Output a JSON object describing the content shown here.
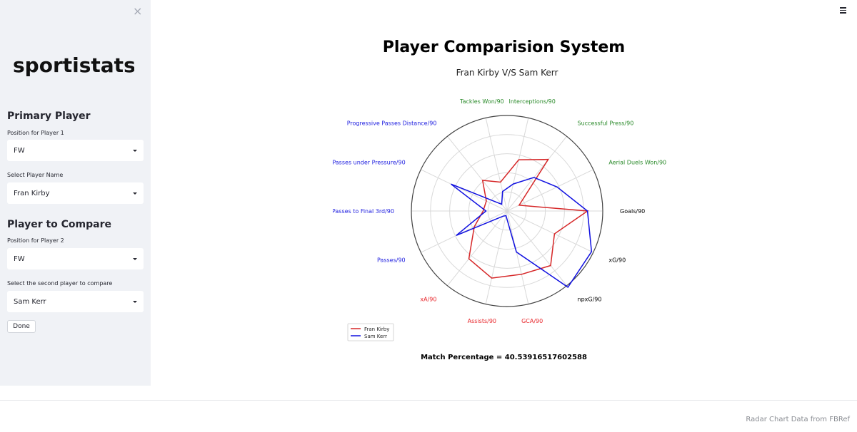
{
  "sidebar": {
    "close_glyph": "×",
    "logo_text": "sportistats",
    "primary_title": "Primary Player",
    "position1_label": "Position for Player 1",
    "position1_value": "FW",
    "player1_label": "Select Player Name",
    "player1_value": "Fran Kirby",
    "compare_title": "Player to Compare",
    "position2_label": "Position for Player 2",
    "position2_value": "FW",
    "player2_label": "Select the second player to compare",
    "player2_value": "Sam Kerr",
    "done_label": "Done"
  },
  "main": {
    "title": "Player Comparision System",
    "match_text": "Match Percentage = 40.53916517602588",
    "footer_text": "Radar Chart Data from FBRef"
  },
  "chart_data": {
    "type": "radar",
    "title": "Fran Kirby V/S Sam Kerr",
    "categories": [
      "Goals/90",
      "xG/90",
      "npxG/90",
      "GCA/90",
      "Assists/90",
      "xA/90",
      "Passes/90",
      "Passes to Final 3rd/90",
      "Passes under Pressure/90",
      "Progressive Passes Distance/90",
      "Tackles Won/90",
      "Interceptions/90",
      "Successful Press/90",
      "Aerial Duels Won/90"
    ],
    "category_colors": [
      "#000000",
      "#000000",
      "#000000",
      "#e8262b",
      "#e8262b",
      "#e8262b",
      "#2020e0",
      "#2020e0",
      "#2020e0",
      "#2020e0",
      "#2a8a2a",
      "#2a8a2a",
      "#2a8a2a",
      "#2a8a2a"
    ],
    "r_max": 1.0,
    "rings": 5,
    "grid": true,
    "legend_position": "bottom-left",
    "series": [
      {
        "name": "Fran Kirby",
        "color": "#d62728",
        "values": [
          0.84,
          0.55,
          0.73,
          0.68,
          0.72,
          0.64,
          0.38,
          0.25,
          0.24,
          0.41,
          0.31,
          0.55,
          0.69,
          0.14
        ]
      },
      {
        "name": "Sam Kerr",
        "color": "#1010e0",
        "values": [
          0.84,
          0.98,
          1.02,
          0.44,
          0.05,
          0.07,
          0.59,
          0.22,
          0.65,
          0.09,
          0.21,
          0.29,
          0.45,
          0.58
        ]
      }
    ]
  }
}
